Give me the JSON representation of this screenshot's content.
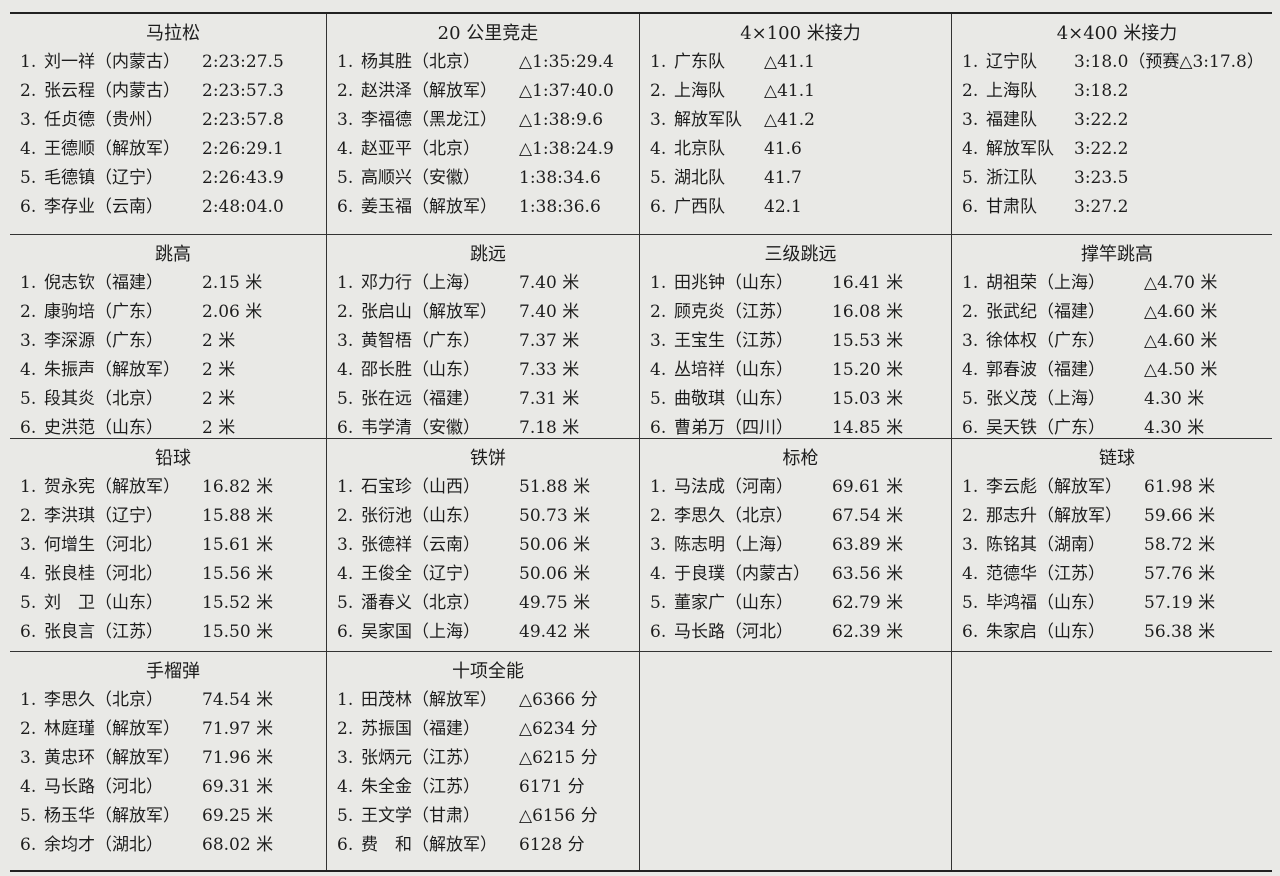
{
  "events": [
    {
      "title": "马拉松",
      "entries": [
        {
          "rank": "1.",
          "name": "刘一祥（内蒙古）",
          "result": "2:23:27.5"
        },
        {
          "rank": "2.",
          "name": "张云程（内蒙古）",
          "result": "2:23:57.3"
        },
        {
          "rank": "3.",
          "name": "任贞德（贵州）",
          "result": "2:23:57.8"
        },
        {
          "rank": "4.",
          "name": "王德顺（解放军）",
          "result": "2:26:29.1"
        },
        {
          "rank": "5.",
          "name": "毛德镇（辽宁）",
          "result": "2:26:43.9"
        },
        {
          "rank": "6.",
          "name": "李存业（云南）",
          "result": "2:48:04.0"
        }
      ]
    },
    {
      "title": "20 公里竞走",
      "entries": [
        {
          "rank": "1.",
          "name": "杨其胜（北京）",
          "result": "△1:35:29.4"
        },
        {
          "rank": "2.",
          "name": "赵洪泽（解放军）",
          "result": "△1:37:40.0"
        },
        {
          "rank": "3.",
          "name": "李福德（黑龙江）",
          "result": "△1:38:9.6"
        },
        {
          "rank": "4.",
          "name": "赵亚平（北京）",
          "result": "△1:38:24.9"
        },
        {
          "rank": "5.",
          "name": "高顺兴（安徽）",
          "result": "1:38:34.6"
        },
        {
          "rank": "6.",
          "name": "姜玉福（解放军）",
          "result": "1:38:36.6"
        }
      ]
    },
    {
      "title": "4×100 米接力",
      "entries": [
        {
          "rank": "1.",
          "name": "广东队",
          "result": "△41.1"
        },
        {
          "rank": "2.",
          "name": "上海队",
          "result": "△41.1"
        },
        {
          "rank": "3.",
          "name": "解放军队",
          "result": "△41.2"
        },
        {
          "rank": "4.",
          "name": "北京队",
          "result": "41.6"
        },
        {
          "rank": "5.",
          "name": "湖北队",
          "result": "41.7"
        },
        {
          "rank": "6.",
          "name": "广西队",
          "result": "42.1"
        }
      ]
    },
    {
      "title": "4×400 米接力",
      "entries": [
        {
          "rank": "1.",
          "name": "辽宁队",
          "result": "3:18.0（预赛△3:17.8）"
        },
        {
          "rank": "2.",
          "name": "上海队",
          "result": "3:18.2"
        },
        {
          "rank": "3.",
          "name": "福建队",
          "result": "3:22.2"
        },
        {
          "rank": "4.",
          "name": "解放军队",
          "result": "3:22.2"
        },
        {
          "rank": "5.",
          "name": "浙江队",
          "result": "3:23.5"
        },
        {
          "rank": "6.",
          "name": "甘肃队",
          "result": "3:27.2"
        }
      ]
    },
    {
      "title": "跳高",
      "entries": [
        {
          "rank": "1.",
          "name": "倪志钦（福建）",
          "result": "2.15 米"
        },
        {
          "rank": "2.",
          "name": "康驹培（广东）",
          "result": "2.06 米"
        },
        {
          "rank": "3.",
          "name": "李深源（广东）",
          "result": "2 米"
        },
        {
          "rank": "4.",
          "name": "朱振声（解放军）",
          "result": "2 米"
        },
        {
          "rank": "5.",
          "name": "段其炎（北京）",
          "result": "2 米"
        },
        {
          "rank": "6.",
          "name": "史洪范（山东）",
          "result": "2 米"
        }
      ]
    },
    {
      "title": "跳远",
      "entries": [
        {
          "rank": "1.",
          "name": "邓力行（上海）",
          "result": "7.40 米"
        },
        {
          "rank": "2.",
          "name": "张启山（解放军）",
          "result": "7.40 米"
        },
        {
          "rank": "3.",
          "name": "黄智梧（广东）",
          "result": "7.37 米"
        },
        {
          "rank": "4.",
          "name": "邵长胜（山东）",
          "result": "7.33 米"
        },
        {
          "rank": "5.",
          "name": "张在远（福建）",
          "result": "7.31 米"
        },
        {
          "rank": "6.",
          "name": "韦学清（安徽）",
          "result": "7.18 米"
        }
      ]
    },
    {
      "title": "三级跳远",
      "entries": [
        {
          "rank": "1.",
          "name": "田兆钟（山东）",
          "result": "16.41 米"
        },
        {
          "rank": "2.",
          "name": "顾克炎（江苏）",
          "result": "16.08 米"
        },
        {
          "rank": "3.",
          "name": "王宝生（江苏）",
          "result": "15.53 米"
        },
        {
          "rank": "4.",
          "name": "丛培祥（山东）",
          "result": "15.20 米"
        },
        {
          "rank": "5.",
          "name": "曲敬琪（山东）",
          "result": "15.03 米"
        },
        {
          "rank": "6.",
          "name": "曹弟万（四川）",
          "result": "14.85 米"
        }
      ]
    },
    {
      "title": "撑竿跳高",
      "entries": [
        {
          "rank": "1.",
          "name": "胡祖荣（上海）",
          "result": "△4.70 米"
        },
        {
          "rank": "2.",
          "name": "张武纪（福建）",
          "result": "△4.60 米"
        },
        {
          "rank": "3.",
          "name": "徐体权（广东）",
          "result": "△4.60 米"
        },
        {
          "rank": "4.",
          "name": "郭春波（福建）",
          "result": "△4.50 米"
        },
        {
          "rank": "5.",
          "name": "张义茂（上海）",
          "result": "4.30 米"
        },
        {
          "rank": "6.",
          "name": "吴天铁（广东）",
          "result": "4.30 米"
        }
      ]
    },
    {
      "title": "铅球",
      "entries": [
        {
          "rank": "1.",
          "name": "贺永宪（解放军）",
          "result": "16.82 米"
        },
        {
          "rank": "2.",
          "name": "李洪琪（辽宁）",
          "result": "15.88 米"
        },
        {
          "rank": "3.",
          "name": "何增生（河北）",
          "result": "15.61 米"
        },
        {
          "rank": "4.",
          "name": "张良桂（河北）",
          "result": "15.56 米"
        },
        {
          "rank": "5.",
          "name": "刘　卫（山东）",
          "result": "15.52 米"
        },
        {
          "rank": "6.",
          "name": "张良言（江苏）",
          "result": "15.50 米"
        }
      ]
    },
    {
      "title": "铁饼",
      "entries": [
        {
          "rank": "1.",
          "name": "石宝珍（山西）",
          "result": "51.88 米"
        },
        {
          "rank": "2.",
          "name": "张衍池（山东）",
          "result": "50.73 米"
        },
        {
          "rank": "3.",
          "name": "张德祥（云南）",
          "result": "50.06 米"
        },
        {
          "rank": "4.",
          "name": "王俊全（辽宁）",
          "result": "50.06 米"
        },
        {
          "rank": "5.",
          "name": "潘春义（北京）",
          "result": "49.75 米"
        },
        {
          "rank": "6.",
          "name": "吴家国（上海）",
          "result": "49.42 米"
        }
      ]
    },
    {
      "title": "标枪",
      "entries": [
        {
          "rank": "1.",
          "name": "马法成（河南）",
          "result": "69.61 米"
        },
        {
          "rank": "2.",
          "name": "李思久（北京）",
          "result": "67.54 米"
        },
        {
          "rank": "3.",
          "name": "陈志明（上海）",
          "result": "63.89 米"
        },
        {
          "rank": "4.",
          "name": "于良璞（内蒙古）",
          "result": "63.56 米"
        },
        {
          "rank": "5.",
          "name": "董家广（山东）",
          "result": "62.79 米"
        },
        {
          "rank": "6.",
          "name": "马长路（河北）",
          "result": "62.39 米"
        }
      ]
    },
    {
      "title": "链球",
      "entries": [
        {
          "rank": "1.",
          "name": "李云彪（解放军）",
          "result": "61.98 米"
        },
        {
          "rank": "2.",
          "name": "那志升（解放军）",
          "result": "59.66 米"
        },
        {
          "rank": "3.",
          "name": "陈铭其（湖南）",
          "result": "58.72 米"
        },
        {
          "rank": "4.",
          "name": "范德华（江苏）",
          "result": "57.76 米"
        },
        {
          "rank": "5.",
          "name": "毕鸿福（山东）",
          "result": "57.19 米"
        },
        {
          "rank": "6.",
          "name": "朱家启（山东）",
          "result": "56.38 米"
        }
      ]
    },
    {
      "title": "手榴弹",
      "entries": [
        {
          "rank": "1.",
          "name": "李思久（北京）",
          "result": "74.54 米"
        },
        {
          "rank": "2.",
          "name": "林庭瑾（解放军）",
          "result": "71.97 米"
        },
        {
          "rank": "3.",
          "name": "黄忠环（解放军）",
          "result": "71.96 米"
        },
        {
          "rank": "4.",
          "name": "马长路（河北）",
          "result": "69.31 米"
        },
        {
          "rank": "5.",
          "name": "杨玉华（解放军）",
          "result": "69.25 米"
        },
        {
          "rank": "6.",
          "name": "余均才（湖北）",
          "result": "68.02 米"
        }
      ]
    },
    {
      "title": "十项全能",
      "entries": [
        {
          "rank": "1.",
          "name": "田茂林（解放军）",
          "result": "△6366 分"
        },
        {
          "rank": "2.",
          "name": "苏振国（福建）",
          "result": "△6234 分"
        },
        {
          "rank": "3.",
          "name": "张炳元（江苏）",
          "result": "△6215 分"
        },
        {
          "rank": "4.",
          "name": "朱全金（江苏）",
          "result": "6171 分"
        },
        {
          "rank": "5.",
          "name": "王文学（甘肃）",
          "result": "△6156 分"
        },
        {
          "rank": "6.",
          "name": "费　和（解放军）",
          "result": "6128 分"
        }
      ]
    }
  ]
}
